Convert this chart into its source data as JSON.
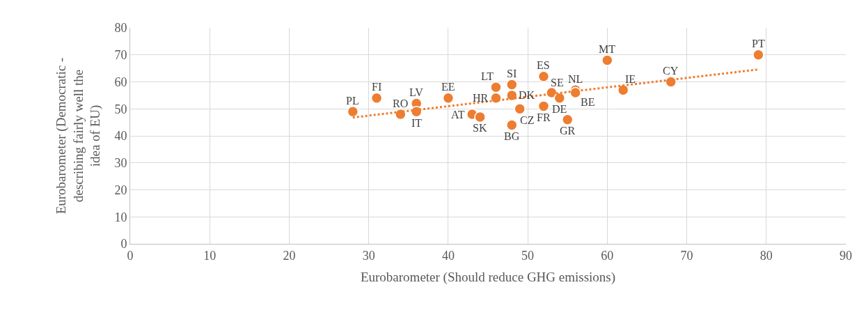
{
  "chart_data": {
    "type": "scatter",
    "xlabel": "Eurobarometer (Should reduce GHG emissions)",
    "ylabel": "Eurobarometer (Democratic - describing fairly well the idea of EU)",
    "series": [
      {
        "color": "#ed7d31",
        "marker": "circle",
        "x": [
          28,
          31,
          34,
          36,
          36,
          40,
          43,
          44,
          46,
          46,
          48,
          48,
          49,
          48,
          52,
          52,
          53,
          54,
          56,
          56,
          55,
          60,
          62,
          68,
          79
        ],
        "values": [
          49,
          54,
          48,
          52,
          49,
          54,
          48,
          47,
          58,
          54,
          59,
          55,
          50,
          44,
          62,
          51,
          56,
          54,
          57,
          56,
          46,
          68,
          57,
          60,
          70
        ],
        "value_labels": [
          "PL",
          "FI",
          "RO",
          "LV",
          "IT",
          "EE",
          "AT",
          "SK",
          "LT",
          "HR",
          "SI",
          "DK",
          "CZ",
          "BG",
          "ES",
          "FR",
          "SE",
          "DE",
          "NL",
          "BE",
          "GR",
          "MT",
          "IE",
          "CY",
          "PT"
        ]
      },
      {
        "type": "line",
        "color": "#ed7d31",
        "line_style": "dotted",
        "x": [
          28,
          79
        ],
        "values": [
          46.8,
          64.6
        ]
      }
    ],
    "xlim": [
      0,
      90
    ],
    "xticks": [
      0,
      10,
      20,
      30,
      40,
      50,
      60,
      70,
      80,
      90
    ],
    "ylim": [
      0,
      80
    ],
    "yticks": [
      0,
      10,
      20,
      30,
      40,
      50,
      60,
      70,
      80
    ],
    "grid": true
  }
}
